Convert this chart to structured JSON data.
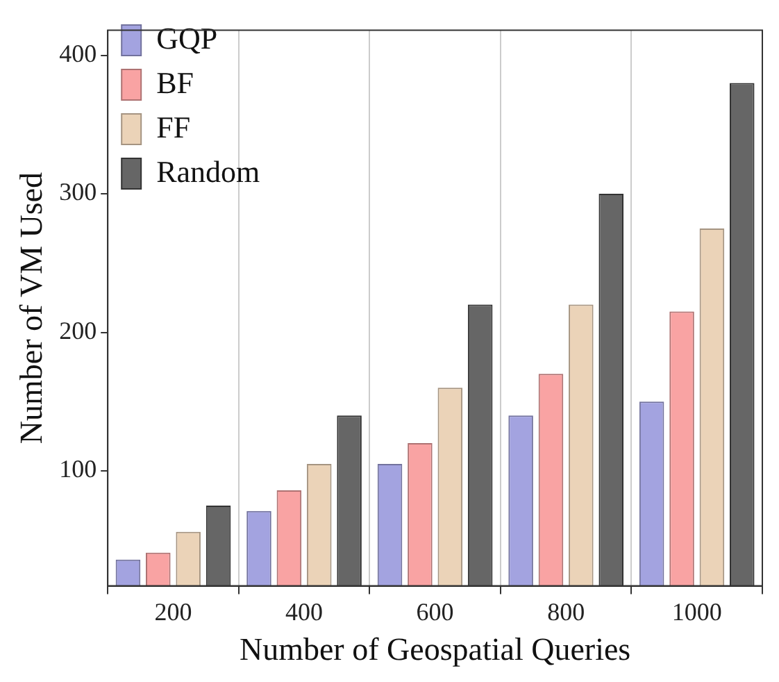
{
  "chart_data": {
    "type": "bar",
    "xlabel": "Number of Geospatial Queries",
    "ylabel": "Number of VM Used",
    "categories": [
      "200",
      "400",
      "600",
      "800",
      "1000"
    ],
    "series": [
      {
        "name": "GQP",
        "color": "#a3a3e0",
        "values": [
          36,
          71,
          105,
          140,
          150
        ]
      },
      {
        "name": "BF",
        "color": "#f9a3a3",
        "values": [
          41,
          86,
          120,
          170,
          215
        ]
      },
      {
        "name": "FF",
        "color": "#ebd3b8",
        "values": [
          56,
          105,
          160,
          220,
          275
        ]
      },
      {
        "name": "Random",
        "color": "#666666",
        "values": [
          75,
          140,
          220,
          300,
          380
        ]
      }
    ],
    "ylim": [
      17,
      418
    ],
    "yticks": [
      100,
      200,
      300,
      400
    ],
    "grid": "x",
    "legend": "top left"
  }
}
